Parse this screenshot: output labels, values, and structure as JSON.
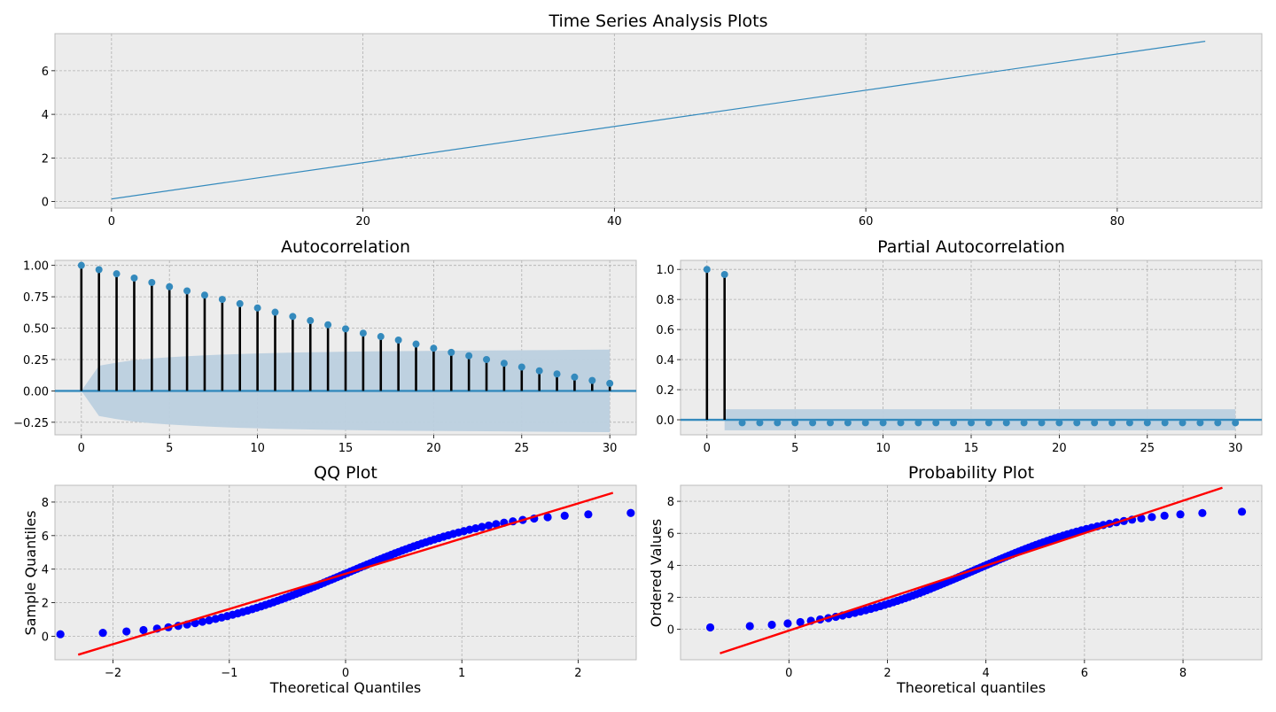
{
  "figure": {
    "suptitle": "Time Series Analysis Plots"
  },
  "colors": {
    "axes_bg": "#ececec",
    "series": "#348abd",
    "stem": "#000000",
    "confidence_band": "#bcd0df",
    "qq_points": "#0000ff",
    "qq_line": "#ff0000"
  },
  "chart_data": [
    {
      "id": "ts",
      "type": "line",
      "title": "",
      "xlabel": "",
      "ylabel": "",
      "xlim": [
        -4.5,
        91.5
      ],
      "ylim": [
        -0.3,
        7.7
      ],
      "xticks": [
        0,
        20,
        40,
        60,
        80
      ],
      "yticks": [
        0,
        2,
        4,
        6
      ],
      "grid": true,
      "series": [
        {
          "x_start": 0,
          "x_end": 87,
          "y_start": 0.12,
          "y_end": 7.35
        }
      ]
    },
    {
      "id": "acf",
      "type": "stem",
      "title": "Autocorrelation",
      "xlabel": "",
      "ylabel": "",
      "xlim": [
        -1.5,
        31.5
      ],
      "ylim": [
        -0.35,
        1.04
      ],
      "xticks": [
        0,
        5,
        10,
        15,
        20,
        25,
        30
      ],
      "yticks": [
        -0.25,
        0.0,
        0.25,
        0.5,
        0.75,
        1.0
      ],
      "ytick_labels": [
        "−0.25",
        "0.00",
        "0.25",
        "0.50",
        "0.75",
        "1.00"
      ],
      "grid": true,
      "lags": [
        0,
        1,
        2,
        3,
        4,
        5,
        6,
        7,
        8,
        9,
        10,
        11,
        12,
        13,
        14,
        15,
        16,
        17,
        18,
        19,
        20,
        21,
        22,
        23,
        24,
        25,
        26,
        27,
        28,
        29,
        30
      ],
      "values": [
        1.0,
        0.966,
        0.933,
        0.899,
        0.864,
        0.83,
        0.797,
        0.763,
        0.729,
        0.695,
        0.661,
        0.627,
        0.593,
        0.56,
        0.527,
        0.494,
        0.46,
        0.433,
        0.405,
        0.373,
        0.34,
        0.307,
        0.28,
        0.25,
        0.22,
        0.19,
        0.16,
        0.135,
        0.11,
        0.083,
        0.06
      ],
      "confint": [
        0.0,
        0.2,
        0.225,
        0.245,
        0.258,
        0.268,
        0.276,
        0.283,
        0.289,
        0.294,
        0.298,
        0.302,
        0.305,
        0.308,
        0.31,
        0.312,
        0.314,
        0.316,
        0.317,
        0.318,
        0.319,
        0.32,
        0.321,
        0.322,
        0.323,
        0.324,
        0.325,
        0.326,
        0.327,
        0.328,
        0.329
      ]
    },
    {
      "id": "pacf",
      "type": "stem",
      "title": "Partial Autocorrelation",
      "xlabel": "",
      "ylabel": "",
      "xlim": [
        -1.5,
        31.5
      ],
      "ylim": [
        -0.1,
        1.06
      ],
      "xticks": [
        0,
        5,
        10,
        15,
        20,
        25,
        30
      ],
      "yticks": [
        0.0,
        0.2,
        0.4,
        0.6,
        0.8,
        1.0
      ],
      "ytick_labels": [
        "0.0",
        "0.2",
        "0.4",
        "0.6",
        "0.8",
        "1.0"
      ],
      "grid": true,
      "lags": [
        0,
        1,
        2,
        3,
        4,
        5,
        6,
        7,
        8,
        9,
        10,
        11,
        12,
        13,
        14,
        15,
        16,
        17,
        18,
        19,
        20,
        21,
        22,
        23,
        24,
        25,
        26,
        27,
        28,
        29,
        30
      ],
      "values": [
        1.0,
        0.966,
        -0.02,
        -0.02,
        -0.02,
        -0.02,
        -0.02,
        -0.02,
        -0.02,
        -0.02,
        -0.02,
        -0.02,
        -0.02,
        -0.02,
        -0.02,
        -0.02,
        -0.02,
        -0.02,
        -0.02,
        -0.02,
        -0.02,
        -0.02,
        -0.02,
        -0.02,
        -0.02,
        -0.02,
        -0.02,
        -0.02,
        -0.02,
        -0.02,
        -0.02
      ],
      "confint_level": 0.07
    },
    {
      "id": "qq",
      "type": "scatter",
      "title": "QQ Plot",
      "xlabel": "Theoretical Quantiles",
      "ylabel": "Sample Quantiles",
      "xlim": [
        -2.5,
        2.5
      ],
      "ylim": [
        -1.4,
        9.0
      ],
      "xticks": [
        -2,
        -1,
        0,
        1,
        2
      ],
      "xtick_labels": [
        "−2",
        "−1",
        "0",
        "1",
        "2"
      ],
      "yticks": [
        0,
        2,
        4,
        6,
        8
      ],
      "grid": true,
      "n_points": 88,
      "sample_min": 0.12,
      "sample_max": 7.35,
      "fit_line": {
        "x": [
          -2.3,
          2.3
        ],
        "y": [
          -1.1,
          8.55
        ]
      }
    },
    {
      "id": "prob",
      "type": "scatter",
      "title": "Probability Plot",
      "xlabel": "Theoretical quantiles",
      "ylabel": "Ordered Values",
      "xlim": [
        -2.2,
        9.6
      ],
      "ylim": [
        -1.9,
        9.0
      ],
      "xticks": [
        0,
        2,
        4,
        6,
        8
      ],
      "yticks": [
        0,
        2,
        4,
        6,
        8
      ],
      "grid": true,
      "n_points": 88,
      "sample_min": 0.12,
      "sample_max": 7.35,
      "fit_line": {
        "x": [
          -1.4,
          8.8
        ],
        "y": [
          -1.5,
          8.85
        ]
      }
    }
  ]
}
